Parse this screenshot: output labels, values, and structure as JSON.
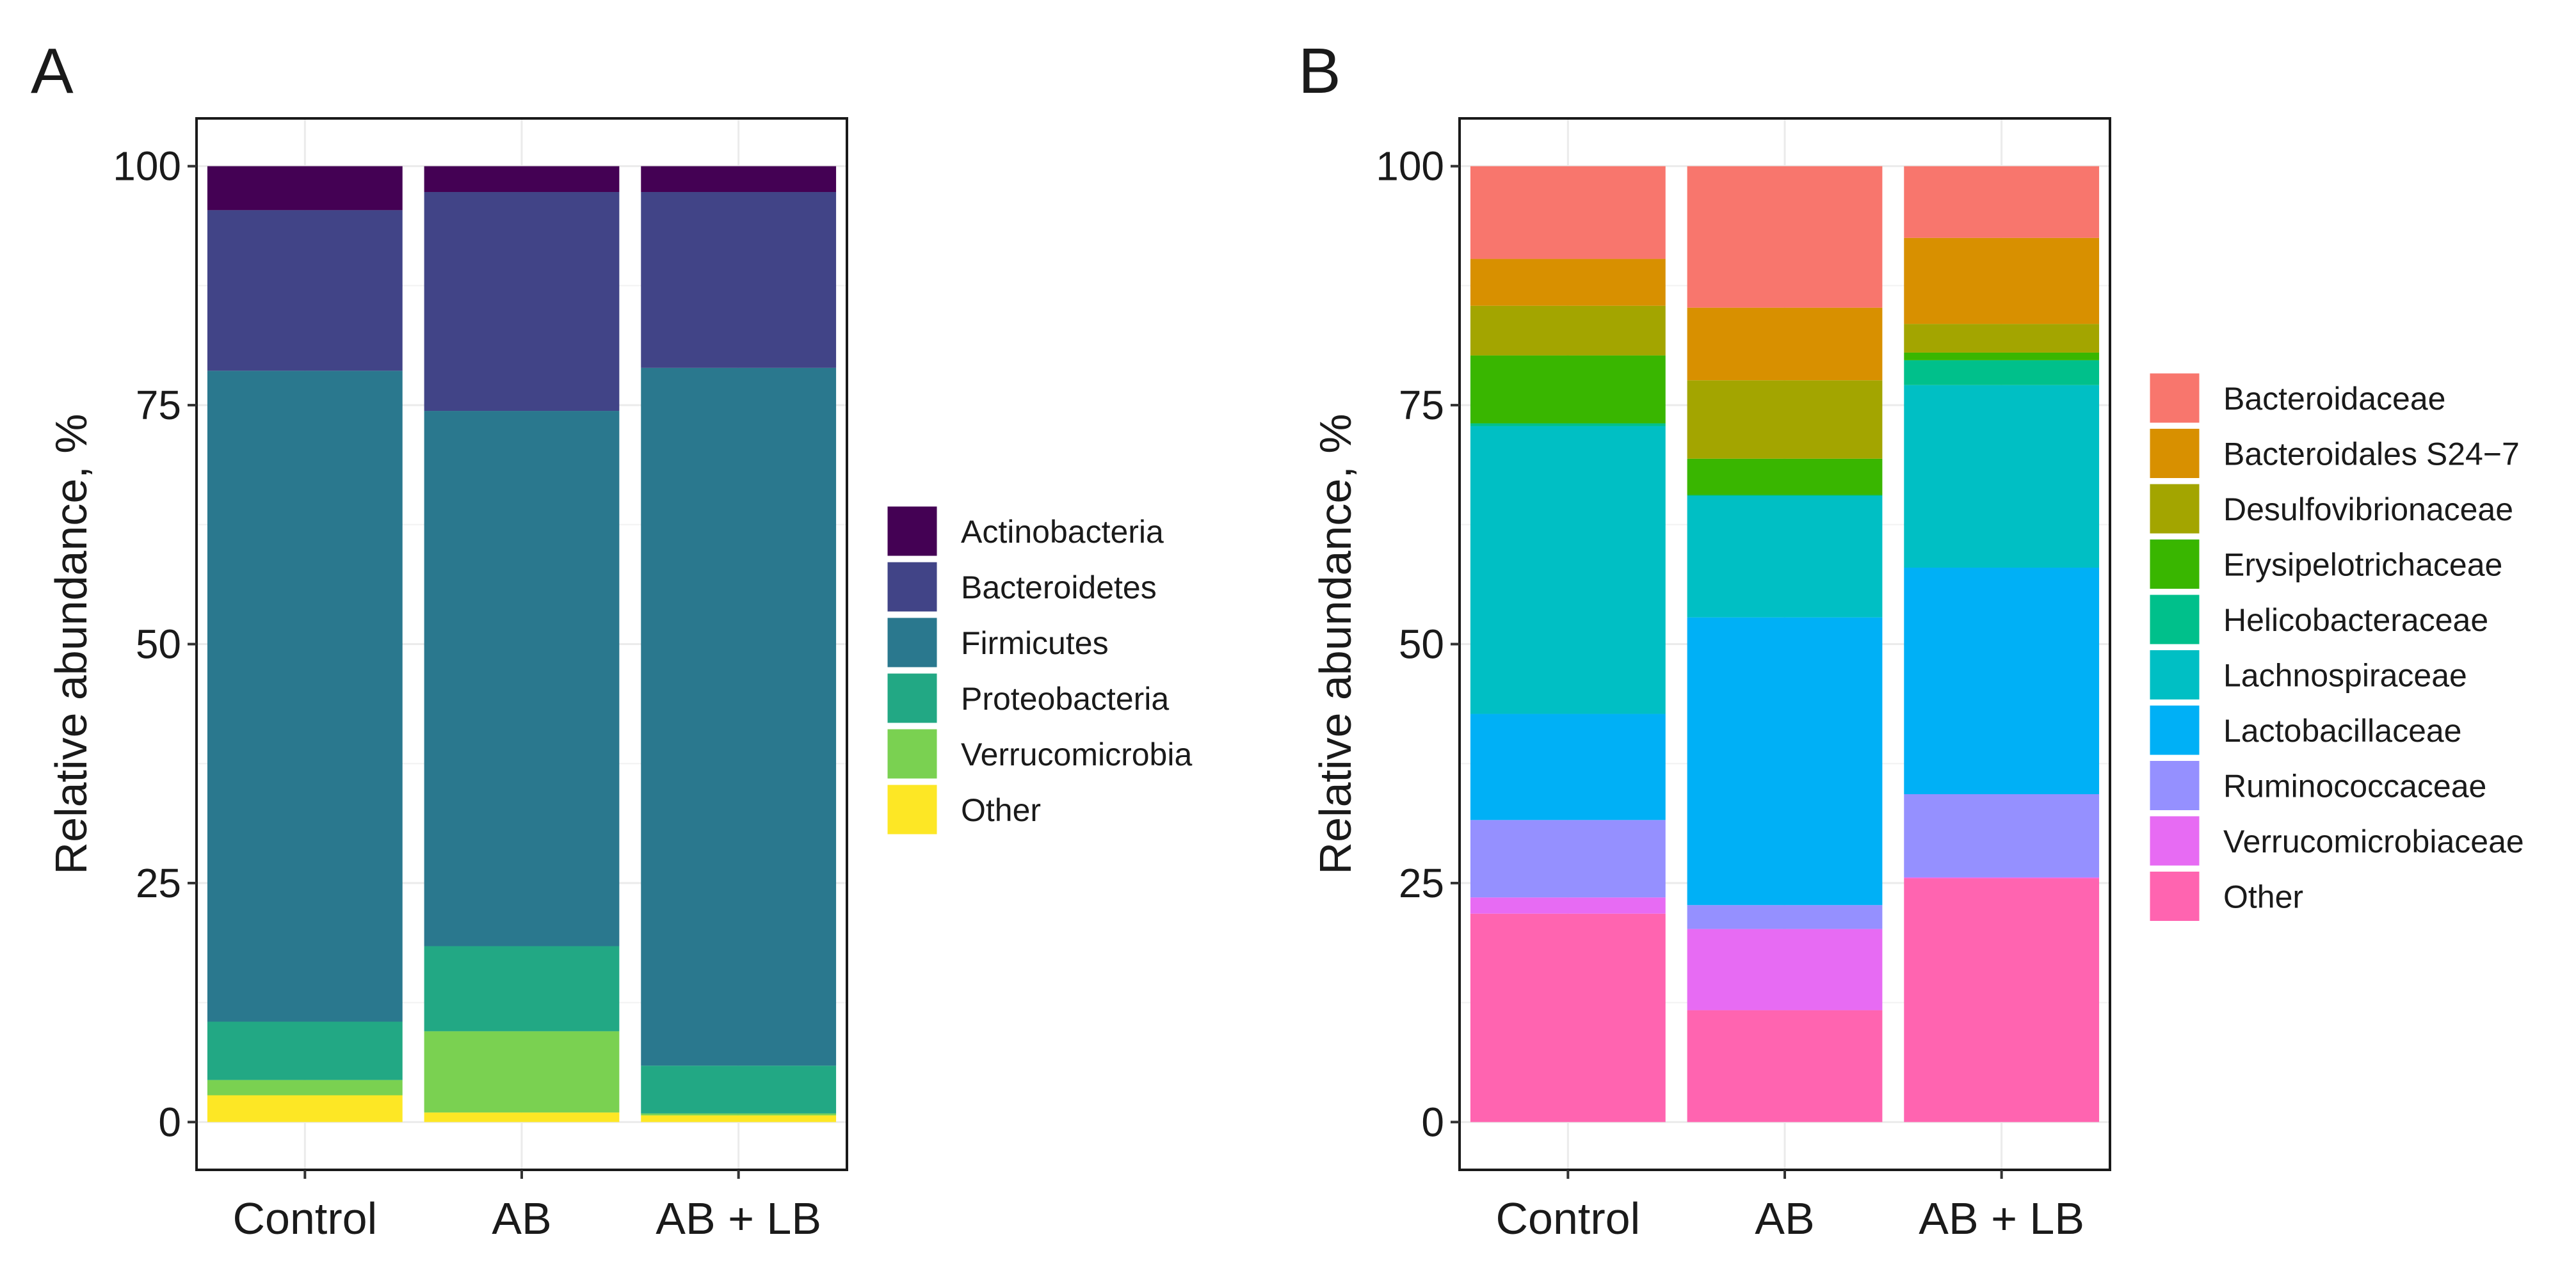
{
  "chart_data": [
    {
      "type": "bar",
      "stacked": true,
      "panel_label": "A",
      "title": "",
      "xlabel": "",
      "ylabel": "Relative abundance, %",
      "ylim": [
        -5,
        105
      ],
      "yticks": [
        0,
        25,
        50,
        75,
        100
      ],
      "categories": [
        "Control",
        "AB",
        "AB + LB"
      ],
      "grid": true,
      "legend_position": "right",
      "series": [
        {
          "name": "Other",
          "color": "#FDE725",
          "values": [
            2.8,
            1.0,
            0.7
          ]
        },
        {
          "name": "Verrucomicrobia",
          "color": "#7AD151",
          "values": [
            1.6,
            8.5,
            0.2
          ]
        },
        {
          "name": "Proteobacteria",
          "color": "#22A884",
          "values": [
            6.1,
            8.9,
            5.0
          ]
        },
        {
          "name": "Firmicutes",
          "color": "#2A788E",
          "values": [
            68.1,
            56.0,
            73.0
          ]
        },
        {
          "name": "Bacteroidetes",
          "color": "#414487",
          "values": [
            16.8,
            22.9,
            18.4
          ]
        },
        {
          "name": "Actinobacteria",
          "color": "#440154",
          "values": [
            4.6,
            2.7,
            2.7
          ]
        }
      ],
      "legend_order": [
        "Actinobacteria",
        "Bacteroidetes",
        "Firmicutes",
        "Proteobacteria",
        "Verrucomicrobia",
        "Other"
      ]
    },
    {
      "type": "bar",
      "stacked": true,
      "panel_label": "B",
      "title": "",
      "xlabel": "",
      "ylabel": "Relative abundance, %",
      "ylim": [
        -5,
        105
      ],
      "yticks": [
        0,
        25,
        50,
        75,
        100
      ],
      "categories": [
        "Control",
        "AB",
        "AB + LB"
      ],
      "grid": true,
      "legend_position": "right",
      "series": [
        {
          "name": "Other",
          "color": "#FF64B0",
          "values": [
            21.8,
            11.7,
            25.5
          ]
        },
        {
          "name": "Verrucomicrobiaceae",
          "color": "#E76BF3",
          "values": [
            1.7,
            8.5,
            0.1
          ]
        },
        {
          "name": "Ruminococcaceae",
          "color": "#9590FF",
          "values": [
            8.1,
            2.5,
            8.7
          ]
        },
        {
          "name": "Lactobacillaceae",
          "color": "#00B0F6",
          "values": [
            11.1,
            30.1,
            23.7
          ]
        },
        {
          "name": "Lachnospiraceae",
          "color": "#00BFC4",
          "values": [
            30.1,
            12.7,
            19.1
          ]
        },
        {
          "name": "Helicobacteraceae",
          "color": "#00C08B",
          "values": [
            0.3,
            0.1,
            2.6
          ]
        },
        {
          "name": "Erysipelotrichaceae",
          "color": "#39B600",
          "values": [
            7.1,
            3.8,
            0.8
          ]
        },
        {
          "name": "Desulfovibrionaceae",
          "color": "#A3A500",
          "values": [
            5.2,
            8.2,
            3.0
          ]
        },
        {
          "name": "Bacteroidales S24−7",
          "color": "#D89000",
          "values": [
            4.9,
            7.6,
            9.0
          ]
        },
        {
          "name": "Bacteroidaceae",
          "color": "#F8766D",
          "values": [
            9.7,
            14.8,
            7.5
          ]
        }
      ],
      "legend_order": [
        "Bacteroidaceae",
        "Bacteroidales S24−7",
        "Desulfovibrionaceae",
        "Erysipelotrichaceae",
        "Helicobacteraceae",
        "Lachnospiraceae",
        "Lactobacillaceae",
        "Ruminococcaceae",
        "Verrucomicrobiaceae",
        "Other"
      ]
    }
  ]
}
